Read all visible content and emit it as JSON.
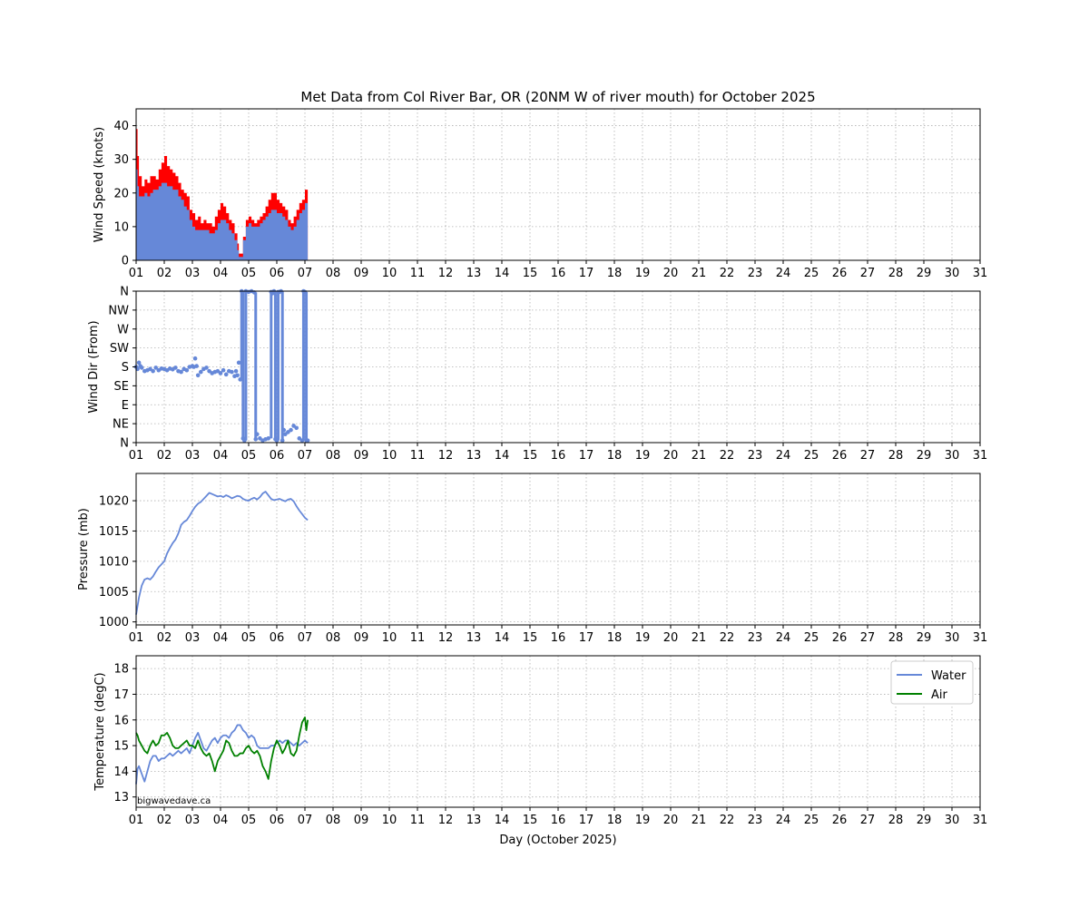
{
  "colors": {
    "blue": "#6688d8",
    "red": "#ff0000",
    "green": "#008000"
  },
  "watermark": "bigwavedave.ca",
  "chart_data": [
    {
      "panel": "wind_speed",
      "type": "area",
      "title": "Met Data from Col River Bar, OR (20NM W of river mouth) for October 2025",
      "xlabel": "",
      "ylabel": "Wind Speed (knots)",
      "xlim": [
        1,
        31
      ],
      "ylim": [
        0,
        45
      ],
      "xticks": [
        "01",
        "02",
        "03",
        "04",
        "05",
        "06",
        "07",
        "08",
        "09",
        "10",
        "11",
        "12",
        "13",
        "14",
        "15",
        "16",
        "17",
        "18",
        "19",
        "20",
        "21",
        "22",
        "23",
        "24",
        "25",
        "26",
        "27",
        "28",
        "29",
        "30",
        "31"
      ],
      "yticks": [
        "0",
        "10",
        "20",
        "30",
        "40"
      ],
      "grid": true,
      "series": [
        {
          "role": "gust",
          "color": "#ff0000",
          "x": [
            1.0,
            1.05,
            1.1,
            1.2,
            1.3,
            1.4,
            1.5,
            1.6,
            1.7,
            1.8,
            1.9,
            2.0,
            2.1,
            2.2,
            2.3,
            2.4,
            2.5,
            2.6,
            2.7,
            2.8,
            2.9,
            3.0,
            3.1,
            3.2,
            3.3,
            3.4,
            3.5,
            3.6,
            3.7,
            3.8,
            3.9,
            4.0,
            4.1,
            4.2,
            4.3,
            4.4,
            4.5,
            4.6,
            4.65,
            4.7,
            4.8,
            4.9,
            5.0,
            5.1,
            5.2,
            5.3,
            5.4,
            5.5,
            5.6,
            5.7,
            5.8,
            5.9,
            6.0,
            6.1,
            6.2,
            6.3,
            6.4,
            6.5,
            6.6,
            6.7,
            6.8,
            6.9,
            7.0,
            7.1
          ],
          "y": [
            39,
            31,
            25,
            22,
            24,
            23,
            25,
            25,
            24,
            27,
            29,
            31,
            28,
            27,
            26,
            25,
            23,
            21,
            20,
            19,
            15,
            14,
            12,
            13,
            11,
            12,
            11,
            11,
            10,
            13,
            15,
            17,
            16,
            14,
            12,
            11,
            8,
            5,
            2,
            2,
            7,
            12,
            13,
            12,
            11,
            12,
            13,
            14,
            16,
            18,
            20,
            20,
            18,
            17,
            16,
            15,
            12,
            11,
            13,
            15,
            17,
            18,
            21,
            21
          ]
        },
        {
          "role": "average",
          "color": "#6688d8",
          "x": [
            1.0,
            1.05,
            1.1,
            1.2,
            1.3,
            1.4,
            1.5,
            1.6,
            1.7,
            1.8,
            1.9,
            2.0,
            2.1,
            2.2,
            2.3,
            2.4,
            2.5,
            2.6,
            2.7,
            2.8,
            2.9,
            3.0,
            3.1,
            3.2,
            3.3,
            3.4,
            3.5,
            3.6,
            3.7,
            3.8,
            3.9,
            4.0,
            4.1,
            4.2,
            4.3,
            4.4,
            4.5,
            4.6,
            4.65,
            4.7,
            4.8,
            4.9,
            5.0,
            5.1,
            5.2,
            5.3,
            5.4,
            5.5,
            5.6,
            5.7,
            5.8,
            5.9,
            6.0,
            6.1,
            6.2,
            6.3,
            6.4,
            6.5,
            6.6,
            6.7,
            6.8,
            6.9,
            7.0,
            7.1
          ],
          "y": [
            27,
            22,
            19,
            19,
            20,
            19,
            20,
            21,
            21,
            22,
            23,
            23,
            22,
            22,
            21,
            21,
            19,
            18,
            16,
            15,
            12,
            10,
            9,
            9,
            9,
            9,
            9,
            8,
            8,
            9,
            11,
            12,
            12,
            11,
            9,
            8,
            6,
            3,
            1,
            1,
            6,
            10,
            11,
            10,
            10,
            10,
            11,
            12,
            13,
            14,
            15,
            15,
            14,
            14,
            13,
            12,
            10,
            9,
            10,
            12,
            14,
            15,
            17,
            17
          ]
        }
      ]
    },
    {
      "panel": "wind_dir",
      "type": "scatter",
      "title": "",
      "ylabel": "Wind Dir (From)",
      "xlim": [
        1,
        31
      ],
      "ylim": [
        0,
        360
      ],
      "yticks": [
        "N",
        "NE",
        "E",
        "SE",
        "S",
        "SW",
        "W",
        "NW",
        "N"
      ],
      "grid": true,
      "series": [
        {
          "color": "#6688d8",
          "x": [
            1.0,
            1.05,
            1.1,
            1.15,
            1.2,
            1.3,
            1.4,
            1.5,
            1.6,
            1.7,
            1.8,
            1.9,
            2.0,
            2.1,
            2.2,
            2.3,
            2.4,
            2.5,
            2.6,
            2.7,
            2.8,
            2.9,
            3.0,
            3.05,
            3.1,
            3.15,
            3.2,
            3.3,
            3.4,
            3.5,
            3.6,
            3.7,
            3.8,
            3.9,
            4.0,
            4.1,
            4.2,
            4.3,
            4.4,
            4.5,
            4.55,
            4.6,
            4.65,
            4.7,
            4.75,
            4.8,
            4.85,
            4.9,
            5.0,
            5.1,
            5.2,
            5.25,
            5.3,
            5.4,
            5.5,
            5.6,
            5.7,
            5.8,
            5.85,
            5.9,
            5.95,
            6.0,
            6.05,
            6.1,
            6.15,
            6.2,
            6.25,
            6.3,
            6.4,
            6.5,
            6.6,
            6.7,
            6.8,
            6.9,
            6.95,
            7.0,
            7.05,
            7.1
          ],
          "y": [
            180,
            175,
            190,
            182,
            178,
            170,
            172,
            175,
            170,
            178,
            172,
            176,
            175,
            172,
            176,
            174,
            178,
            170,
            168,
            175,
            172,
            180,
            182,
            180,
            200,
            182,
            160,
            168,
            175,
            178,
            170,
            165,
            168,
            170,
            165,
            172,
            162,
            170,
            168,
            158,
            170,
            160,
            190,
            150,
            360,
            10,
            5,
            360,
            358,
            360,
            357,
            8,
            20,
            10,
            5,
            8,
            10,
            358,
            355,
            360,
            8,
            5,
            358,
            358,
            360,
            5,
            30,
            20,
            25,
            30,
            40,
            35,
            10,
            5,
            360,
            358,
            5,
            5
          ]
        }
      ]
    },
    {
      "panel": "pressure",
      "type": "line",
      "title": "",
      "ylabel": "Pressure (mb)",
      "xlim": [
        1,
        31
      ],
      "ylim": [
        999.5,
        1024.5
      ],
      "yticks": [
        "1000",
        "1005",
        "1010",
        "1015",
        "1020"
      ],
      "grid": true,
      "series": [
        {
          "color": "#6688d8",
          "x": [
            1.0,
            1.1,
            1.2,
            1.3,
            1.4,
            1.5,
            1.6,
            1.7,
            1.8,
            1.9,
            2.0,
            2.1,
            2.2,
            2.3,
            2.4,
            2.5,
            2.6,
            2.7,
            2.8,
            2.9,
            3.0,
            3.1,
            3.2,
            3.3,
            3.4,
            3.5,
            3.6,
            3.7,
            3.8,
            3.9,
            4.0,
            4.1,
            4.2,
            4.3,
            4.4,
            4.5,
            4.6,
            4.7,
            4.8,
            4.9,
            5.0,
            5.1,
            5.2,
            5.3,
            5.4,
            5.5,
            5.6,
            5.7,
            5.8,
            5.9,
            6.0,
            6.1,
            6.2,
            6.3,
            6.4,
            6.5,
            6.6,
            6.7,
            6.8,
            6.9,
            7.0,
            7.1
          ],
          "y": [
            1001.2,
            1004.0,
            1006.0,
            1007.0,
            1007.2,
            1007.0,
            1007.5,
            1008.3,
            1009.0,
            1009.5,
            1010.0,
            1011.3,
            1012.2,
            1013.0,
            1013.6,
            1014.6,
            1016.0,
            1016.5,
            1016.8,
            1017.5,
            1018.3,
            1019.0,
            1019.5,
            1019.8,
            1020.3,
            1020.8,
            1021.3,
            1021.1,
            1020.9,
            1020.7,
            1020.8,
            1020.6,
            1020.9,
            1020.7,
            1020.4,
            1020.6,
            1020.8,
            1020.7,
            1020.3,
            1020.1,
            1020.0,
            1020.3,
            1020.5,
            1020.2,
            1020.6,
            1021.2,
            1021.5,
            1020.9,
            1020.3,
            1020.1,
            1020.2,
            1020.3,
            1020.1,
            1019.9,
            1020.2,
            1020.3,
            1019.9,
            1019.1,
            1018.4,
            1017.8,
            1017.2,
            1016.8
          ]
        }
      ]
    },
    {
      "panel": "temperature",
      "type": "line",
      "title": "",
      "xlabel": "Day (October 2025)",
      "ylabel": "Temperature (degC)",
      "xlim": [
        1,
        31
      ],
      "ylim": [
        12.6,
        18.5
      ],
      "yticks": [
        "13",
        "14",
        "15",
        "16",
        "17",
        "18"
      ],
      "grid": true,
      "legend": "top-right",
      "series": [
        {
          "name": "Water",
          "color": "#6688d8",
          "x": [
            1.0,
            1.05,
            1.1,
            1.2,
            1.3,
            1.4,
            1.5,
            1.6,
            1.7,
            1.8,
            1.9,
            2.0,
            2.1,
            2.2,
            2.3,
            2.4,
            2.5,
            2.6,
            2.7,
            2.8,
            2.9,
            3.0,
            3.1,
            3.2,
            3.3,
            3.4,
            3.5,
            3.6,
            3.7,
            3.8,
            3.9,
            4.0,
            4.1,
            4.2,
            4.3,
            4.4,
            4.5,
            4.6,
            4.7,
            4.8,
            4.9,
            5.0,
            5.1,
            5.2,
            5.3,
            5.4,
            5.5,
            5.6,
            5.7,
            5.8,
            5.9,
            6.0,
            6.1,
            6.2,
            6.3,
            6.4,
            6.5,
            6.6,
            6.7,
            6.8,
            6.9,
            7.0,
            7.1
          ],
          "y": [
            13.5,
            14.1,
            14.2,
            13.9,
            13.6,
            14.0,
            14.4,
            14.6,
            14.6,
            14.4,
            14.5,
            14.5,
            14.6,
            14.7,
            14.6,
            14.7,
            14.8,
            14.7,
            14.8,
            14.9,
            14.7,
            15.0,
            15.3,
            15.5,
            15.2,
            14.9,
            14.8,
            15.0,
            15.2,
            15.3,
            15.1,
            15.3,
            15.4,
            15.4,
            15.3,
            15.5,
            15.6,
            15.8,
            15.8,
            15.6,
            15.5,
            15.3,
            15.4,
            15.3,
            15.0,
            14.9,
            14.9,
            14.9,
            14.9,
            15.0,
            15.0,
            15.1,
            15.2,
            15.1,
            15.2,
            15.2,
            15.1,
            15.0,
            15.1,
            15.0,
            15.1,
            15.2,
            15.1
          ]
        },
        {
          "name": "Air",
          "color": "#008000",
          "x": [
            1.0,
            1.05,
            1.1,
            1.2,
            1.3,
            1.4,
            1.5,
            1.6,
            1.7,
            1.8,
            1.9,
            2.0,
            2.1,
            2.2,
            2.3,
            2.4,
            2.5,
            2.6,
            2.7,
            2.8,
            2.9,
            3.0,
            3.1,
            3.2,
            3.3,
            3.4,
            3.5,
            3.6,
            3.7,
            3.8,
            3.9,
            4.0,
            4.1,
            4.2,
            4.3,
            4.4,
            4.5,
            4.6,
            4.7,
            4.8,
            4.9,
            5.0,
            5.1,
            5.2,
            5.3,
            5.4,
            5.5,
            5.6,
            5.7,
            5.8,
            5.9,
            6.0,
            6.1,
            6.2,
            6.3,
            6.4,
            6.5,
            6.6,
            6.7,
            6.8,
            6.9,
            7.0,
            7.05,
            7.1
          ],
          "y": [
            15.5,
            15.4,
            15.2,
            15.0,
            14.8,
            14.7,
            15.0,
            15.2,
            15.0,
            15.1,
            15.4,
            15.4,
            15.5,
            15.3,
            15.0,
            14.9,
            14.9,
            15.0,
            15.1,
            15.2,
            15.0,
            15.0,
            14.9,
            15.2,
            14.9,
            14.7,
            14.6,
            14.7,
            14.4,
            14.0,
            14.4,
            14.6,
            14.8,
            15.2,
            15.1,
            14.8,
            14.6,
            14.6,
            14.7,
            14.7,
            14.9,
            15.0,
            14.8,
            14.7,
            14.8,
            14.6,
            14.2,
            14.0,
            13.7,
            14.4,
            14.9,
            15.2,
            15.0,
            14.7,
            14.9,
            15.2,
            14.7,
            14.6,
            14.8,
            15.4,
            15.9,
            16.1,
            15.6,
            16.0
          ]
        }
      ]
    }
  ]
}
